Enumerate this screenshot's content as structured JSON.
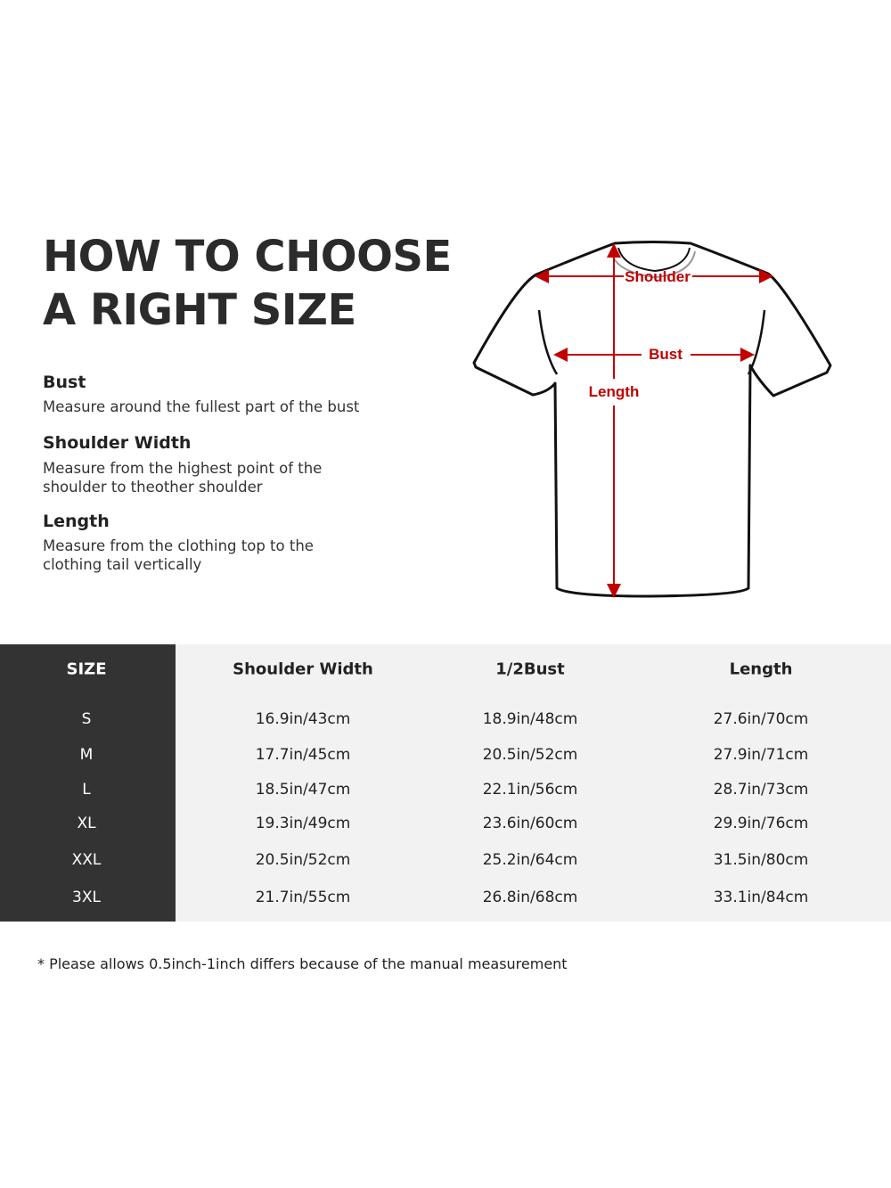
{
  "heading": {
    "line1": "HOW TO CHOOSE",
    "line2": "A RIGHT SIZE"
  },
  "guide": [
    {
      "term": "Bust",
      "description": "Measure around the fullest part of the bust"
    },
    {
      "term": "Shoulder Width",
      "description_lines": [
        "Measure from the highest point of the",
        "shoulder to theother shoulder"
      ]
    },
    {
      "term": "Length",
      "description_lines": [
        "Measure from the clothing top to the",
        "clothing tail vertically"
      ]
    }
  ],
  "diagram": {
    "labels": {
      "shoulder": "Shoulder",
      "bust": "Bust",
      "length": "Length"
    },
    "arrow_color": "#c00000"
  },
  "table": {
    "headers": [
      "SIZE",
      "Shoulder Width",
      "1/2Bust",
      "Length"
    ],
    "rows": [
      [
        "S",
        "16.9in/43cm",
        "18.9in/48cm",
        "27.6in/70cm"
      ],
      [
        "M",
        "17.7in/45cm",
        "20.5in/52cm",
        "27.9in/71cm"
      ],
      [
        "L",
        "18.5in/47cm",
        "22.1in/56cm",
        "28.7in/73cm"
      ],
      [
        "XL",
        "19.3in/49cm",
        "23.6in/60cm",
        "29.9in/76cm"
      ],
      [
        "XXL",
        "20.5in/52cm",
        "25.2in/64cm",
        "31.5in/80cm"
      ],
      [
        "3XL",
        "21.7in/55cm",
        "26.8in/68cm",
        "33.1in/84cm"
      ]
    ],
    "size_column_color": "#333333",
    "body_color": "#f2f2f2"
  },
  "note": "* Please allows 0.5inch-1inch differs because of the  manual measurement"
}
